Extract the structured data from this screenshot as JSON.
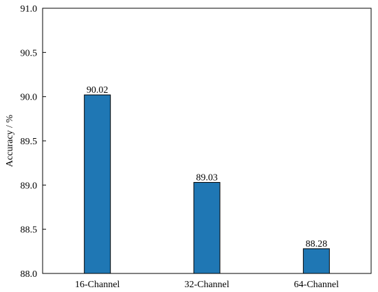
{
  "chart_data": {
    "type": "bar",
    "categories": [
      "16-Channel",
      "32-Channel",
      "64-Channel"
    ],
    "values": [
      90.02,
      89.03,
      88.28
    ],
    "value_labels": [
      "90.02",
      "89.03",
      "88.28"
    ],
    "ylabel": "Accuracy / %",
    "xlabel": "",
    "title": "",
    "ylim": [
      88.0,
      91.0
    ],
    "yticks": [
      88.0,
      88.5,
      89.0,
      89.5,
      90.0,
      90.5,
      91.0
    ],
    "ytick_labels": [
      "88.0",
      "88.5",
      "89.0",
      "89.5",
      "90.0",
      "90.5",
      "91.0"
    ],
    "grid": false,
    "bar_color": "#1f77b4"
  }
}
